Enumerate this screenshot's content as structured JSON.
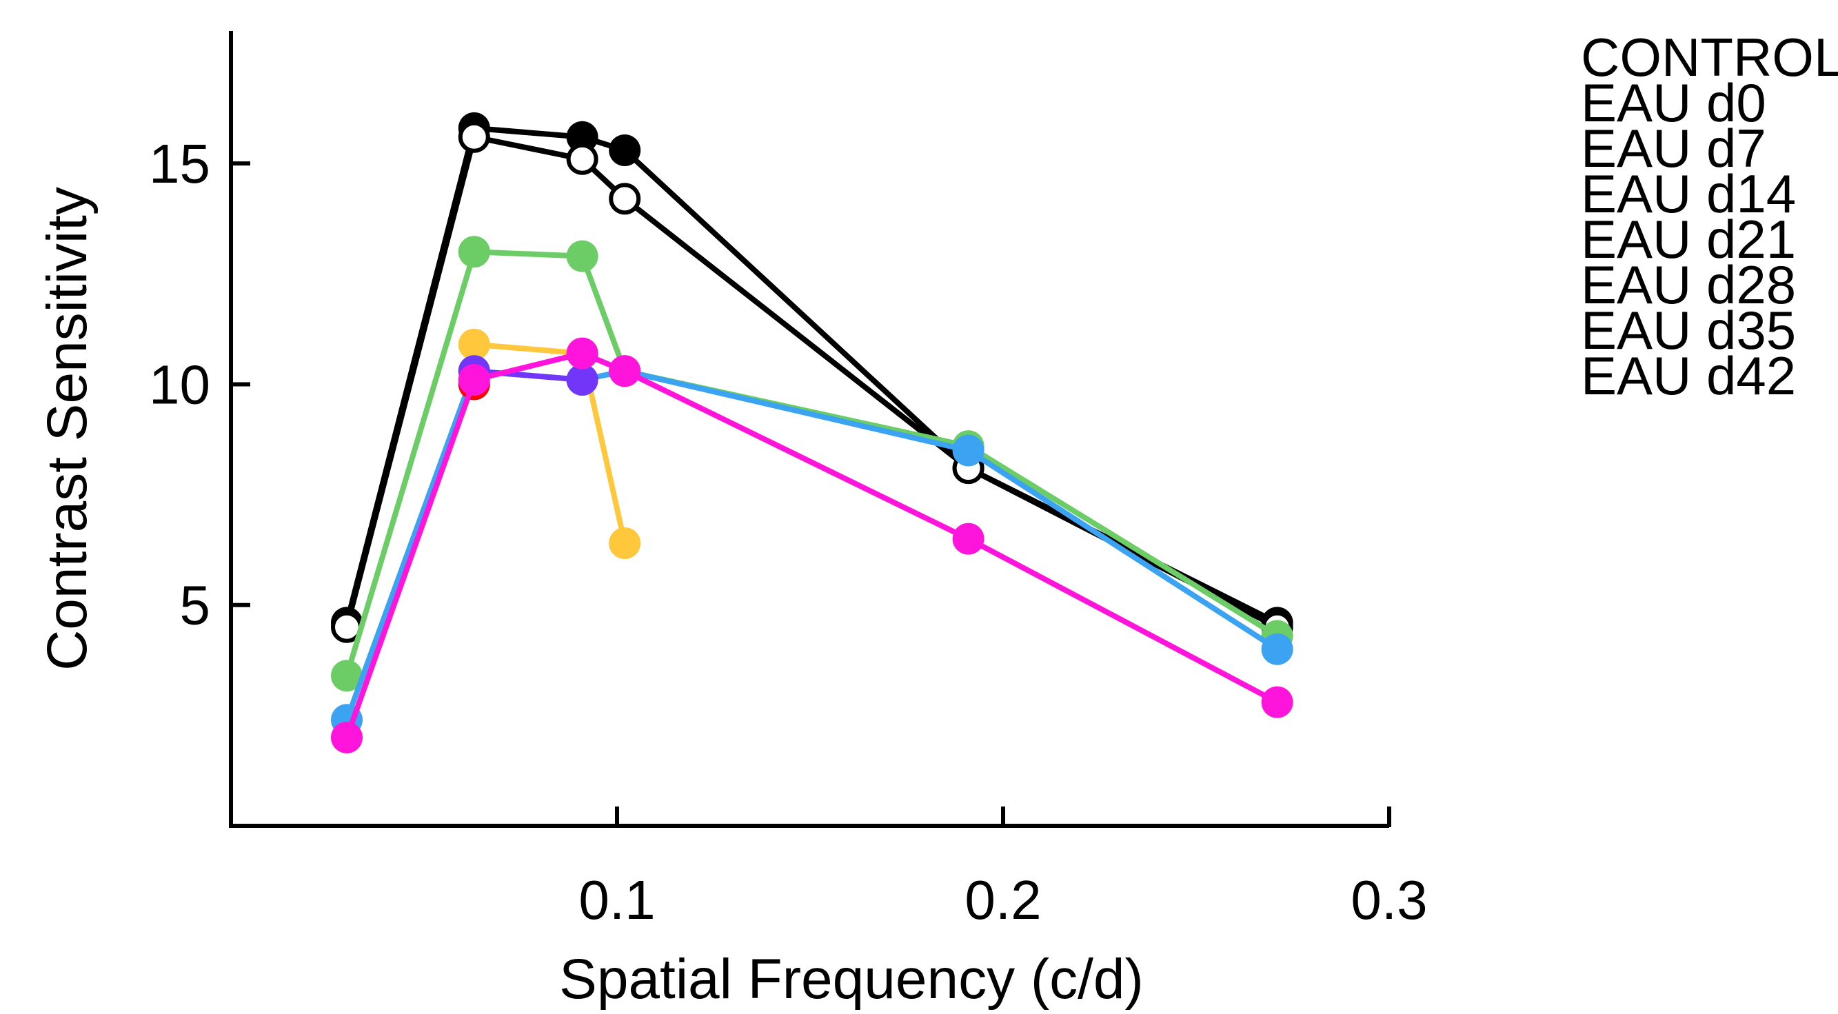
{
  "chart_data": {
    "type": "line",
    "title": "",
    "xlabel": "Spatial Frequency (c/d)",
    "ylabel": "Contrast Sensitivity",
    "xlim": [
      0.0,
      0.3
    ],
    "ylim": [
      0.0,
      18.0
    ],
    "xticks": [
      {
        "value": 0.1,
        "label": "0.1"
      },
      {
        "value": 0.2,
        "label": "0.2"
      },
      {
        "value": 0.3,
        "label": "0.3"
      }
    ],
    "yticks": [
      {
        "value": 5,
        "label": "5"
      },
      {
        "value": 10,
        "label": "10"
      },
      {
        "value": 15,
        "label": "15"
      }
    ],
    "grid": false,
    "legend_position": "right",
    "legend_labels": [
      "CONTROL",
      "EAU d0",
      "EAU d7",
      "EAU d14",
      "EAU d21",
      "EAU d28",
      "EAU d35",
      "EAU d42"
    ],
    "series": [
      {
        "color": "#000000",
        "marker": "filled",
        "x": [
          0.03,
          0.063,
          0.091,
          0.102,
          0.191,
          0.271
        ],
        "y": [
          4.6,
          15.8,
          15.6,
          15.3,
          8.1,
          4.6
        ]
      },
      {
        "color": "#000000",
        "marker": "open",
        "x": [
          0.03,
          0.063,
          0.091,
          0.102,
          0.191,
          0.271
        ],
        "y": [
          4.5,
          15.6,
          15.1,
          14.2,
          8.1,
          4.5
        ]
      },
      {
        "color": "#ffc83c",
        "marker": "filled",
        "x": [
          0.063,
          0.091,
          0.102
        ],
        "y": [
          10.9,
          10.7,
          6.4
        ]
      },
      {
        "color": "#6ccc66",
        "marker": "filled",
        "x": [
          0.03,
          0.063,
          0.091,
          0.102,
          0.191,
          0.271
        ],
        "y": [
          3.4,
          13.0,
          12.9,
          10.3,
          8.6,
          4.3
        ]
      },
      {
        "color": "#3ca2f2",
        "marker": "filled",
        "x": [
          0.03,
          0.063,
          0.091,
          0.102,
          0.191,
          0.271
        ],
        "y": [
          2.4,
          10.3,
          10.1,
          10.3,
          8.5,
          4.0
        ]
      },
      {
        "color": "#7236f8",
        "marker": "filled",
        "x": [
          0.063,
          0.091
        ],
        "y": [
          10.3,
          10.1
        ]
      },
      {
        "color": "#ff0000",
        "marker": "filled",
        "x": [
          0.063
        ],
        "y": [
          10.0
        ]
      },
      {
        "color": "#ff14dc",
        "marker": "filled",
        "x": [
          0.03,
          0.063,
          0.091,
          0.102,
          0.191,
          0.271
        ],
        "y": [
          2.0,
          10.1,
          10.7,
          10.3,
          6.5,
          2.8
        ]
      }
    ]
  }
}
